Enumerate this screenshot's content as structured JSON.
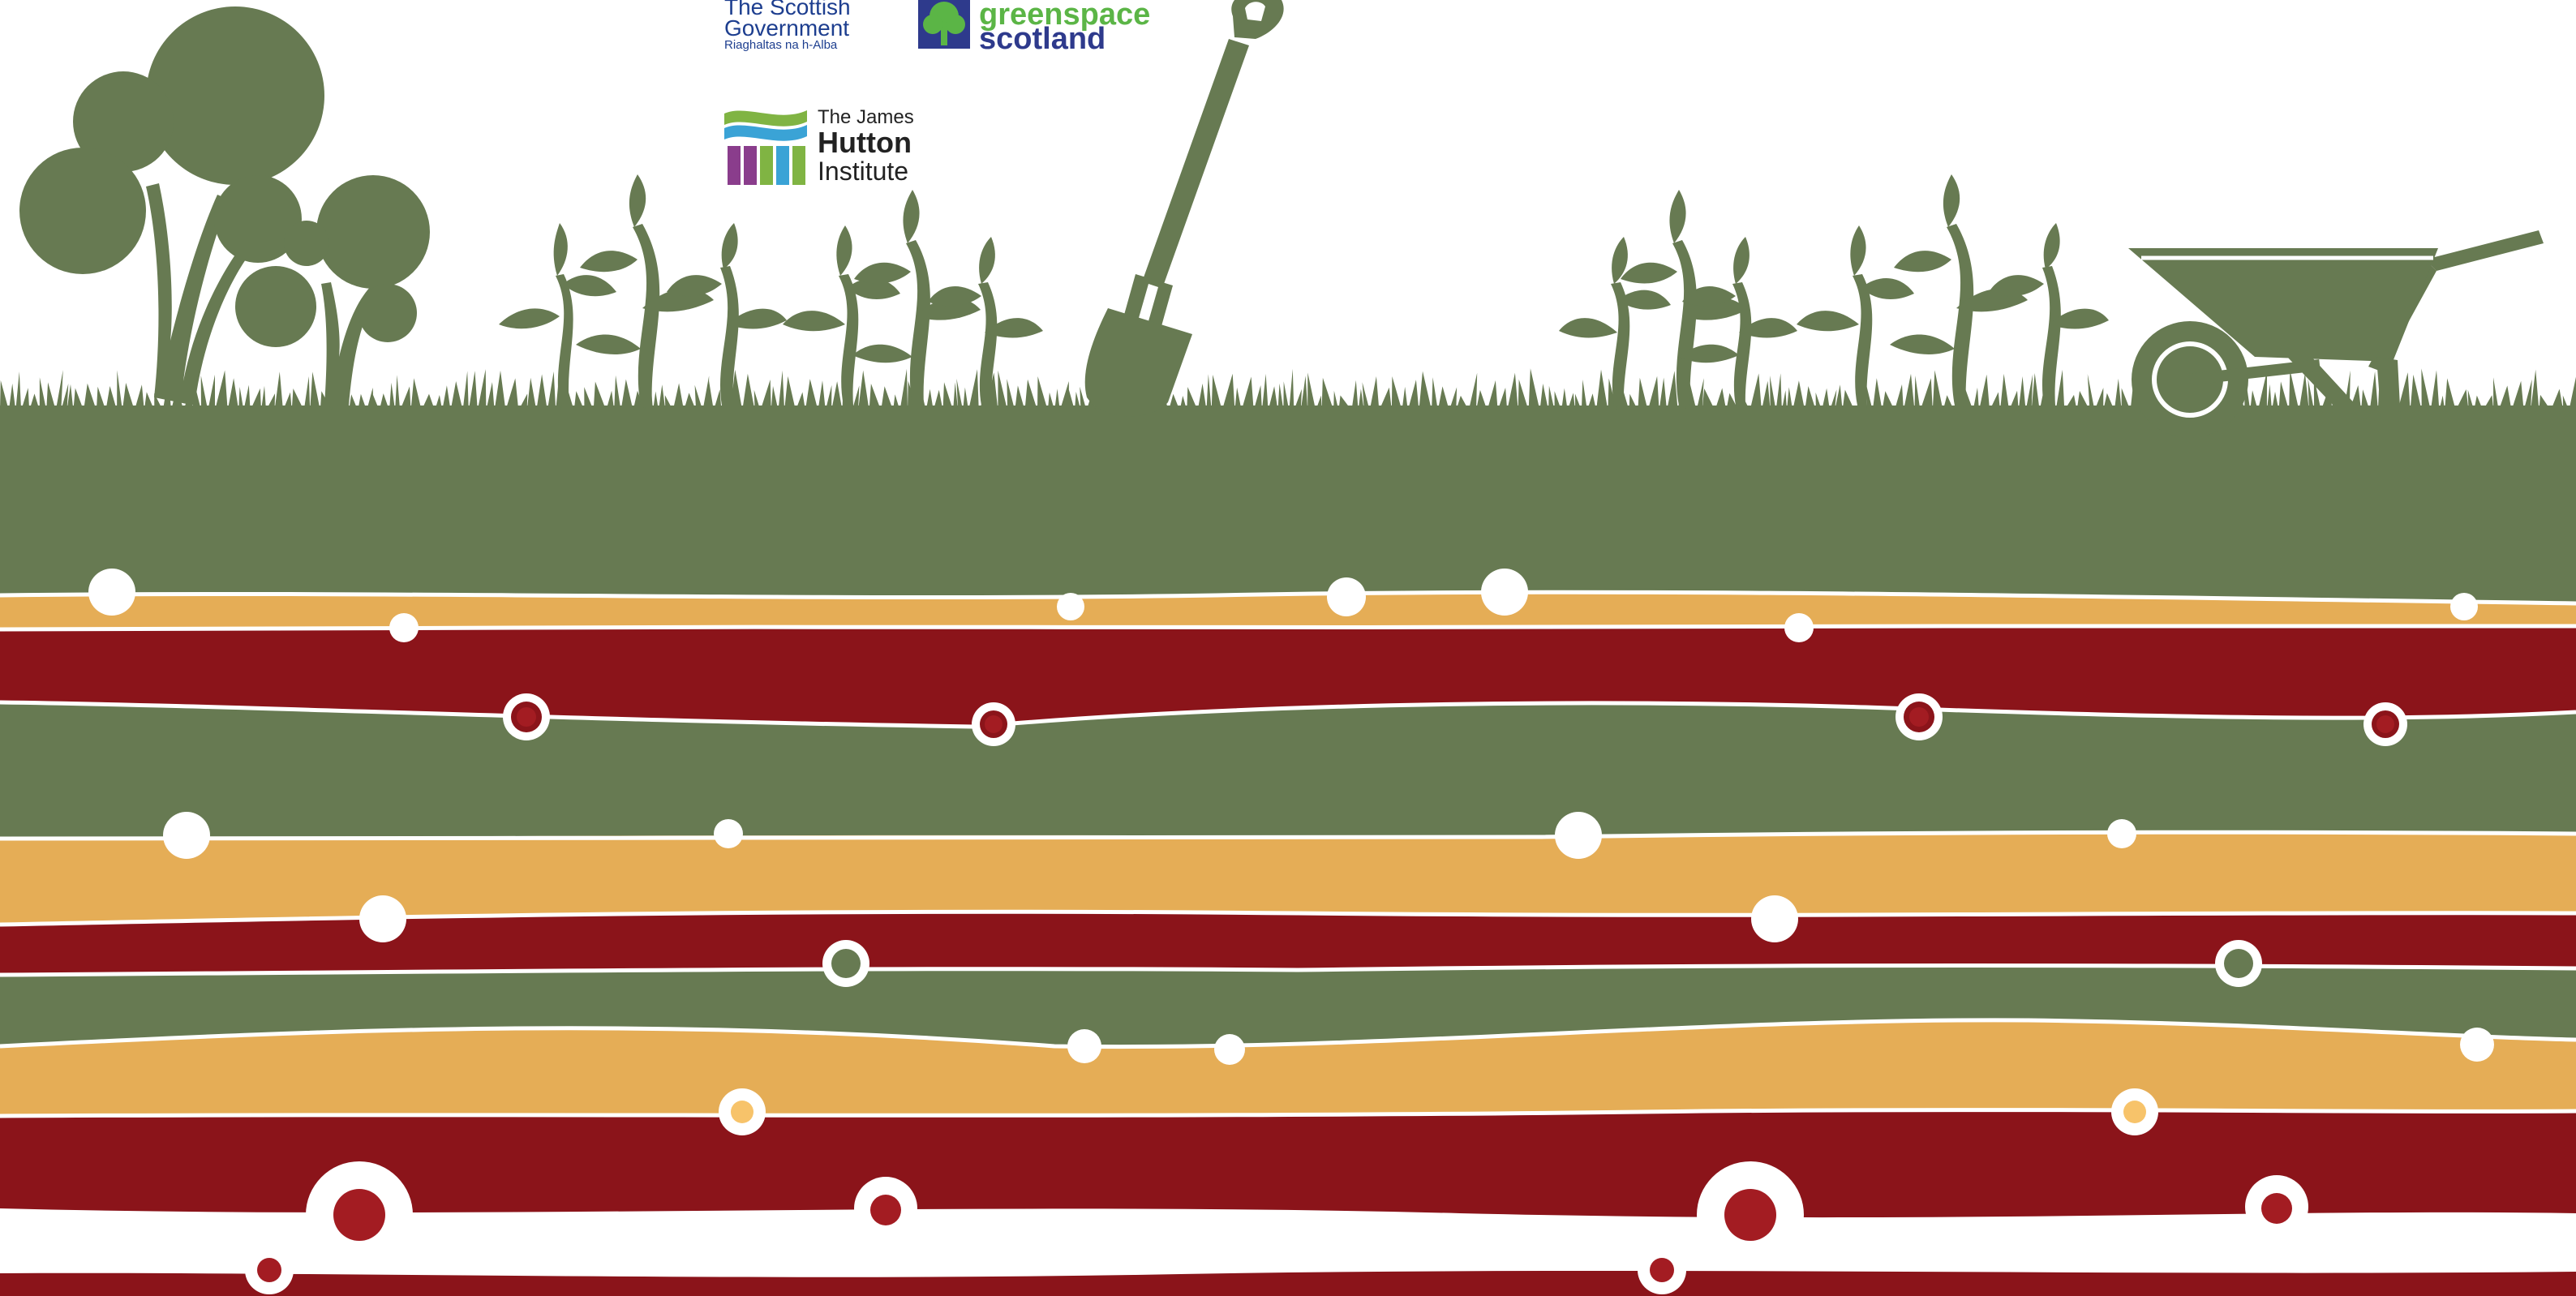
{
  "colors": {
    "background": "#ffffff",
    "green": "#677a52",
    "mustard": "#e5ad56",
    "crimson": "#8b141a",
    "dot_red": "#a31c22",
    "dot_light_orange": "#f7c36a",
    "white": "#ffffff",
    "sg_blue": "#1d3e8f",
    "gs_green": "#5bb546",
    "jhi_purple": "#8a3d8c",
    "jhi_blue": "#3aa3d6",
    "jhi_green": "#80b443",
    "jhi_dark": "#222222"
  },
  "logos": {
    "scottish_government": {
      "line1": "The Scottish",
      "line2": "Government",
      "line3": "Riaghaltas na h-Alba"
    },
    "greenspace_scotland": {
      "line1": "greenspace",
      "line2": "scotland"
    },
    "james_hutton_institute": {
      "line1": "The James",
      "line2": "Hutton",
      "line3": "Institute"
    }
  },
  "scene": {
    "icons": [
      "tree-icon",
      "seedling-icon",
      "spade-icon",
      "wheelbarrow-icon",
      "grass-icon"
    ],
    "soil_layers": [
      "green",
      "mustard",
      "crimson",
      "green",
      "mustard",
      "crimson",
      "green",
      "mustard",
      "crimson",
      "white",
      "crimson"
    ]
  }
}
